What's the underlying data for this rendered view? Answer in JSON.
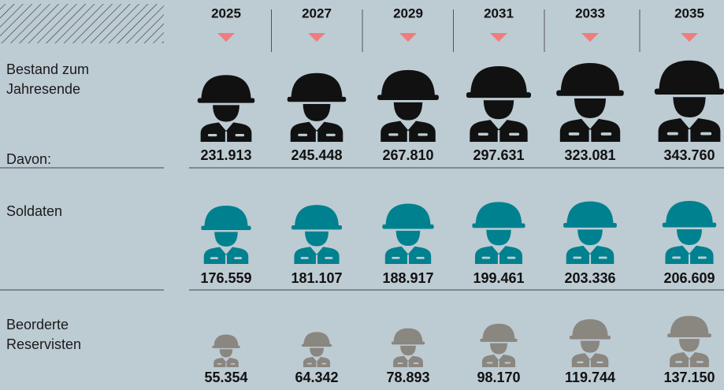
{
  "chart_data": {
    "type": "pictogram",
    "categories": [
      "2025",
      "2027",
      "2029",
      "2031",
      "2033",
      "2035"
    ],
    "annotation": "Davon:",
    "series": [
      {
        "name": "Bestand zum Jahresende",
        "color": "#111111",
        "values": [
          231913,
          245448,
          267810,
          297631,
          323081,
          343760
        ],
        "value_labels": [
          "231.913",
          "245.448",
          "267.810",
          "297.631",
          "323.081",
          "343.760"
        ]
      },
      {
        "name": "Soldaten",
        "color": "#00818f",
        "values": [
          176559,
          181107,
          188917,
          199461,
          203336,
          206609
        ],
        "value_labels": [
          "176.559",
          "181.107",
          "188.917",
          "199.461",
          "203.336",
          "206.609"
        ]
      },
      {
        "name": "Beorderte Reservisten",
        "color": "#8a8680",
        "values": [
          55354,
          64342,
          78893,
          98170,
          119744,
          137150
        ],
        "value_labels": [
          "55.354",
          "64.342",
          "78.893",
          "98.170",
          "119.744",
          "137.150"
        ]
      }
    ],
    "marker_color": "#f07c7c"
  }
}
